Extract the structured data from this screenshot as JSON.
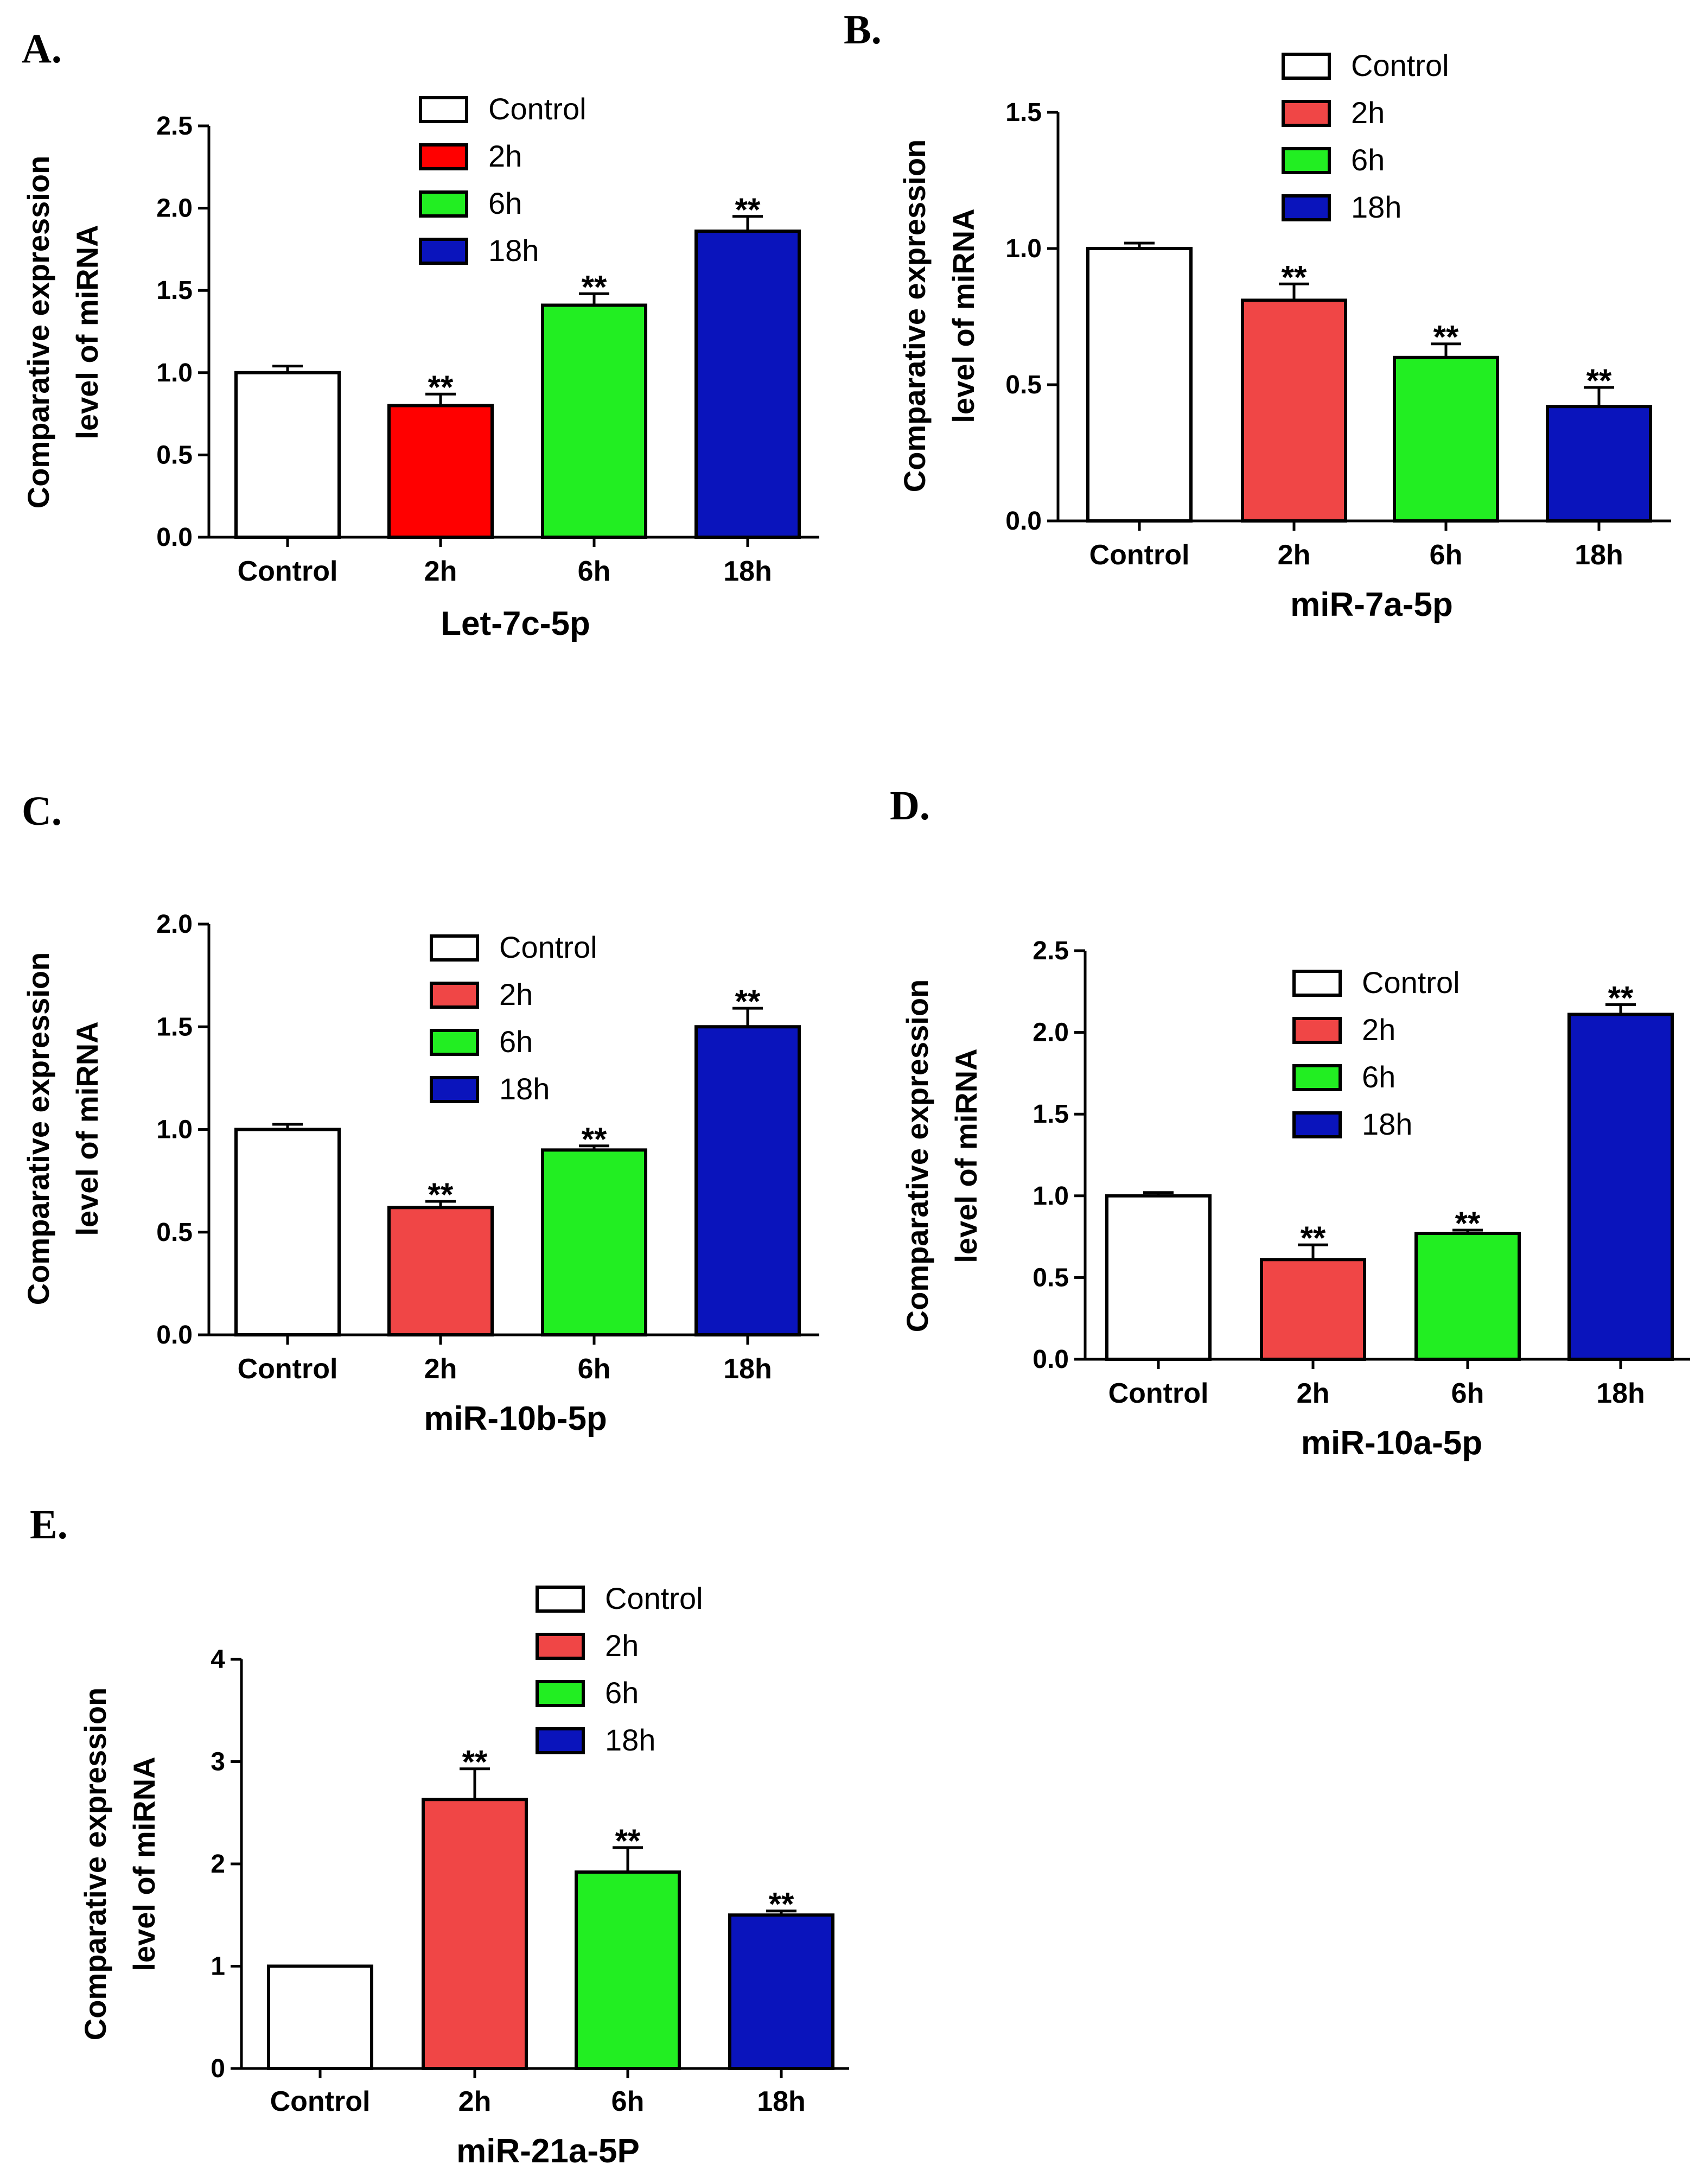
{
  "figure": {
    "legend_labels": [
      "Control",
      "2h",
      "6h",
      "18h"
    ],
    "colors": {
      "Control": "#ffffff",
      "2h": "#f04646",
      "6h": "#22ee22",
      "18h": "#0a14bc",
      "2h_panelA": "#ff0000"
    }
  },
  "chart_data": [
    {
      "panel": "A.",
      "type": "bar",
      "title": "",
      "xlabel": "Let-7c-5p",
      "ylabel": [
        "Comparative expression",
        "level of miRNA"
      ],
      "categories": [
        "Control",
        "2h",
        "6h",
        "18h"
      ],
      "values": [
        1.0,
        0.8,
        1.41,
        1.86
      ],
      "errors": [
        0.04,
        0.07,
        0.07,
        0.09
      ],
      "significance": [
        "",
        "**",
        "**",
        "**"
      ],
      "ylim": [
        0,
        2.5
      ],
      "yticks": [
        "0.0",
        "0.5",
        "1.0",
        "1.5",
        "2.0",
        "2.5"
      ],
      "legend": [
        "Control",
        "2h",
        "6h",
        "18h"
      ],
      "legend_position": "top-center",
      "grid": false
    },
    {
      "panel": "B.",
      "type": "bar",
      "title": "",
      "xlabel": "miR-7a-5p",
      "ylabel": [
        "Comparative expression",
        "level of miRNA"
      ],
      "categories": [
        "Control",
        "2h",
        "6h",
        "18h"
      ],
      "values": [
        1.0,
        0.81,
        0.6,
        0.42
      ],
      "errors": [
        0.02,
        0.06,
        0.05,
        0.07
      ],
      "significance": [
        "",
        "**",
        "**",
        "**"
      ],
      "ylim": [
        0,
        1.5
      ],
      "yticks": [
        "0.0",
        "0.5",
        "1.0",
        "1.5"
      ],
      "legend": [
        "Control",
        "2h",
        "6h",
        "18h"
      ],
      "legend_position": "top-right",
      "grid": false
    },
    {
      "panel": "C.",
      "type": "bar",
      "title": "",
      "xlabel": "miR-10b-5p",
      "ylabel": [
        "Comparative expression",
        "level of miRNA"
      ],
      "categories": [
        "Control",
        "2h",
        "6h",
        "18h"
      ],
      "values": [
        1.0,
        0.62,
        0.9,
        1.5
      ],
      "errors": [
        0.025,
        0.03,
        0.02,
        0.09
      ],
      "significance": [
        "",
        "**",
        "**",
        "**"
      ],
      "ylim": [
        0,
        2.0
      ],
      "yticks": [
        "0.0",
        "0.5",
        "1.0",
        "1.5",
        "2.0"
      ],
      "legend": [
        "Control",
        "2h",
        "6h",
        "18h"
      ],
      "legend_position": "top-center",
      "grid": false
    },
    {
      "panel": "D.",
      "type": "bar",
      "title": "",
      "xlabel": "miR-10a-5p",
      "ylabel": [
        "Comparative expression",
        "level of miRNA"
      ],
      "categories": [
        "Control",
        "2h",
        "6h",
        "18h"
      ],
      "values": [
        1.0,
        0.61,
        0.77,
        2.11
      ],
      "errors": [
        0.02,
        0.09,
        0.02,
        0.06
      ],
      "significance": [
        "",
        "**",
        "**",
        "**"
      ],
      "ylim": [
        0,
        2.5
      ],
      "yticks": [
        "0.0",
        "0.5",
        "1.0",
        "1.5",
        "2.0",
        "2.5"
      ],
      "legend": [
        "Control",
        "2h",
        "6h",
        "18h"
      ],
      "legend_position": "top-center",
      "grid": false
    },
    {
      "panel": "E.",
      "type": "bar",
      "title": "",
      "xlabel": "miR-21a-5P",
      "ylabel": [
        "Comparative expression",
        "level of miRNA"
      ],
      "categories": [
        "Control",
        "2h",
        "6h",
        "18h"
      ],
      "values": [
        1.0,
        2.63,
        1.92,
        1.5
      ],
      "errors": [
        0.0,
        0.3,
        0.24,
        0.04
      ],
      "significance": [
        "",
        "**",
        "**",
        "**"
      ],
      "ylim": [
        0,
        4
      ],
      "yticks": [
        "0",
        "1",
        "2",
        "3",
        "4"
      ],
      "legend": [
        "Control",
        "2h",
        "6h",
        "18h"
      ],
      "legend_position": "top-center",
      "grid": false
    }
  ]
}
